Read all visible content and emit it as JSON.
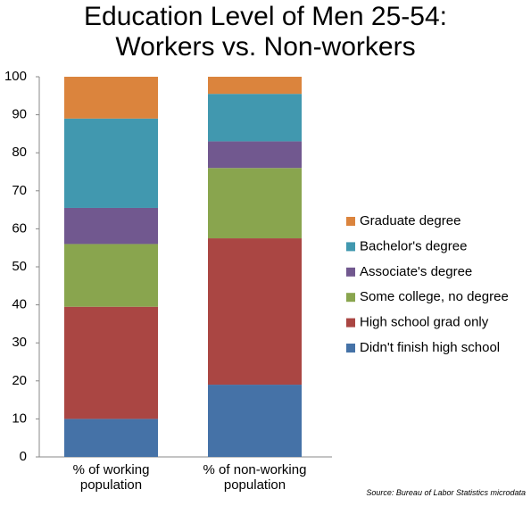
{
  "chart_data": {
    "type": "stacked_bar",
    "title": "Education Level of Men 25-54: Workers vs. Non-workers",
    "categories": [
      "% of working population",
      "% of non-working population"
    ],
    "series": [
      {
        "name": "Didn't finish high school",
        "color": "#4572a7",
        "values": [
          10,
          19
        ]
      },
      {
        "name": "High school grad only",
        "color": "#aa4643",
        "values": [
          29.5,
          38.5
        ]
      },
      {
        "name": "Some college, no degree",
        "color": "#89a54e",
        "values": [
          16.5,
          18.5
        ]
      },
      {
        "name": "Associate's degree",
        "color": "#71588f",
        "values": [
          9.5,
          7
        ]
      },
      {
        "name": "Bachelor's degree",
        "color": "#4198af",
        "values": [
          23.5,
          12.5
        ]
      },
      {
        "name": "Graduate degree",
        "color": "#db843d",
        "values": [
          11,
          4.5
        ]
      }
    ],
    "ylim": [
      0,
      100
    ],
    "yticks": [
      0,
      10,
      20,
      30,
      40,
      50,
      60,
      70,
      80,
      90,
      100
    ],
    "source": "Source: Bureau of Labor Statistics microdata"
  }
}
